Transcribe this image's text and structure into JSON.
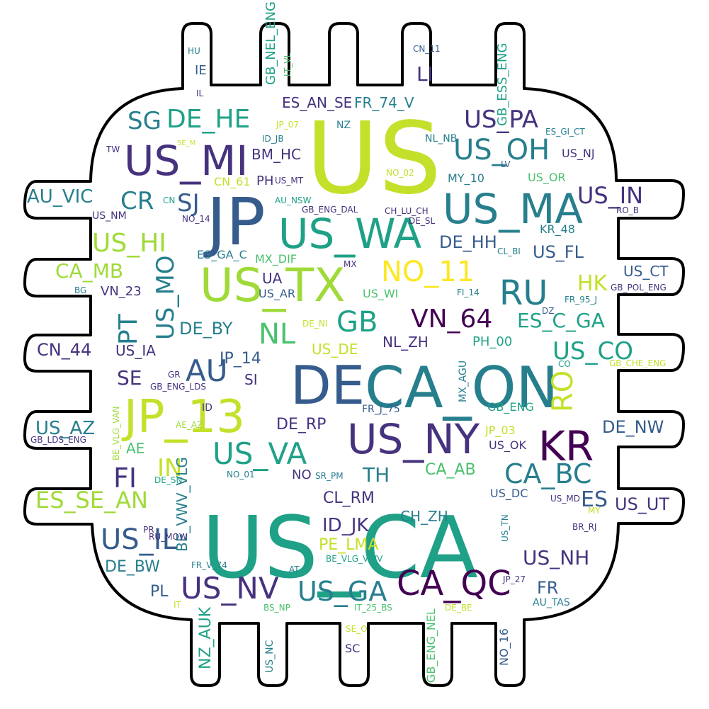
{
  "colors": {
    "background": "#ffffff",
    "outline": "#000000",
    "palette": [
      "#440154",
      "#46327e",
      "#365c8d",
      "#277f8e",
      "#1fa187",
      "#4ac16d",
      "#a0da39",
      "#c4e02a",
      "#fde725"
    ]
  },
  "words": [
    {
      "text": "US"
    },
    {
      "text": "US_CA"
    },
    {
      "text": "JP"
    },
    {
      "text": "CA_ON"
    },
    {
      "text": "DE"
    },
    {
      "text": "US_TX"
    },
    {
      "text": "US_MA"
    },
    {
      "text": "US_WA"
    },
    {
      "text": "US_NY"
    },
    {
      "text": "JP_13"
    },
    {
      "text": "US_MI"
    },
    {
      "text": "CA_QC"
    },
    {
      "text": "CA_BC"
    },
    {
      "text": "KR"
    },
    {
      "text": "US_VA"
    },
    {
      "text": "NO_11"
    },
    {
      "text": "RU"
    },
    {
      "text": "VN_64"
    },
    {
      "text": "US_OH"
    },
    {
      "text": "US_IL"
    },
    {
      "text": "US_NV"
    },
    {
      "text": "US_GA"
    },
    {
      "text": "US_HI"
    },
    {
      "text": "DE_HE"
    },
    {
      "text": "US_PA"
    },
    {
      "text": "NL"
    },
    {
      "text": "GB"
    },
    {
      "text": "AU"
    },
    {
      "text": "US_MO"
    },
    {
      "text": "ES_SE_AN"
    },
    {
      "text": "US_CO"
    },
    {
      "text": "RO"
    },
    {
      "text": "US_IN"
    },
    {
      "text": "CR"
    },
    {
      "text": "SJ"
    },
    {
      "text": "SG"
    },
    {
      "text": "PT"
    },
    {
      "text": "CA_MB"
    },
    {
      "text": "FI"
    },
    {
      "text": "US_NH"
    },
    {
      "text": "ES_C_GA"
    },
    {
      "text": "AU_VIC"
    },
    {
      "text": "US_FL"
    },
    {
      "text": "HK"
    },
    {
      "text": "DE_BY"
    },
    {
      "text": "DE_HH"
    },
    {
      "text": "TH"
    },
    {
      "text": "US_AZ"
    },
    {
      "text": "DE_NW"
    },
    {
      "text": "ES"
    },
    {
      "text": "US_UT"
    },
    {
      "text": "FR"
    },
    {
      "text": "CN_44"
    },
    {
      "text": "SE"
    },
    {
      "text": "IN"
    },
    {
      "text": "ID_JK"
    },
    {
      "text": "CA_AB"
    },
    {
      "text": "PE_LMA"
    },
    {
      "text": "CL_RM"
    },
    {
      "text": "DE_BW"
    },
    {
      "text": "CH_ZH"
    },
    {
      "text": "ES_AN_SE"
    },
    {
      "text": "FR_74_V"
    },
    {
      "text": "US_CT"
    },
    {
      "text": "US_OR"
    },
    {
      "text": "DE_RP"
    },
    {
      "text": "LI"
    },
    {
      "text": "JP_14"
    },
    {
      "text": "PL"
    },
    {
      "text": "NZ_AUK"
    },
    {
      "text": "US_DE"
    },
    {
      "text": "US_IA"
    },
    {
      "text": "NL_ZH"
    },
    {
      "text": "PH_00"
    },
    {
      "text": "GB_ESS_ENG"
    },
    {
      "text": "GB_NEL_ENG"
    },
    {
      "text": "BE_VWV_VLG"
    },
    {
      "text": "US_NJ"
    },
    {
      "text": "BM_HC"
    },
    {
      "text": "CN_61"
    },
    {
      "text": "GB_ENG"
    },
    {
      "text": "KR_48"
    },
    {
      "text": "US_OK"
    },
    {
      "text": "JP_03"
    },
    {
      "text": "MX_DIF"
    },
    {
      "text": "ES_GA_C"
    },
    {
      "text": "US_DC"
    },
    {
      "text": "NO"
    },
    {
      "text": "AE"
    },
    {
      "text": "SI"
    },
    {
      "text": "UA"
    },
    {
      "text": "PH"
    },
    {
      "text": "MY_10"
    },
    {
      "text": "US_WI"
    },
    {
      "text": "US_AR"
    },
    {
      "text": "VN_23"
    },
    {
      "text": "GB_ENG_NEL"
    },
    {
      "text": "NO_16"
    },
    {
      "text": "IE"
    },
    {
      "text": "SC"
    },
    {
      "text": "FR_J_75"
    },
    {
      "text": "MX_AGU"
    },
    {
      "text": "AU_TAS"
    },
    {
      "text": "BE_VLG_VWV"
    },
    {
      "text": "US_NC"
    },
    {
      "text": "NL_NB"
    },
    {
      "text": "GB_CHE_ENG"
    },
    {
      "text": "GB_POL_ENG"
    },
    {
      "text": "GB_ENG_LDS"
    },
    {
      "text": "GB_LDS_ENG"
    },
    {
      "text": "GB_ENG_DAL"
    },
    {
      "text": "NZ"
    },
    {
      "text": "LV"
    },
    {
      "text": "CO"
    },
    {
      "text": "DZ"
    },
    {
      "text": "US_NM"
    },
    {
      "text": "US_MT"
    },
    {
      "text": "US_MD"
    },
    {
      "text": "US_TN"
    },
    {
      "text": "AU_NSW"
    },
    {
      "text": "CH_LU_CH"
    },
    {
      "text": "DE_SL"
    },
    {
      "text": "DE_NI"
    },
    {
      "text": "DE_SN"
    },
    {
      "text": "DE_BE"
    },
    {
      "text": "FI_14"
    },
    {
      "text": "FR_95_J"
    },
    {
      "text": "FR_V_74"
    },
    {
      "text": "ES_GI_CT"
    },
    {
      "text": "RO_B"
    },
    {
      "text": "CL_BI"
    },
    {
      "text": "JP_27"
    },
    {
      "text": "BR_RJ"
    },
    {
      "text": "JP_07"
    },
    {
      "text": "ID_JB"
    },
    {
      "text": "SE_M"
    },
    {
      "text": "SE_O"
    },
    {
      "text": "NO_01"
    },
    {
      "text": "NO_02"
    },
    {
      "text": "NO_14"
    },
    {
      "text": "SR_PM"
    },
    {
      "text": "RU_MOW"
    },
    {
      "text": "AE_AZ"
    },
    {
      "text": "BE_VLG_VAN"
    },
    {
      "text": "IT_25_BS"
    },
    {
      "text": "BS_NP"
    },
    {
      "text": "LT_VL"
    },
    {
      "text": "CN_11"
    },
    {
      "text": "HU"
    },
    {
      "text": "IL"
    },
    {
      "text": "TW"
    },
    {
      "text": "CN"
    },
    {
      "text": "BG"
    },
    {
      "text": "GR"
    },
    {
      "text": "ID"
    },
    {
      "text": "PR"
    },
    {
      "text": "AT"
    },
    {
      "text": "IT"
    },
    {
      "text": "MX"
    },
    {
      "text": "MY"
    }
  ]
}
